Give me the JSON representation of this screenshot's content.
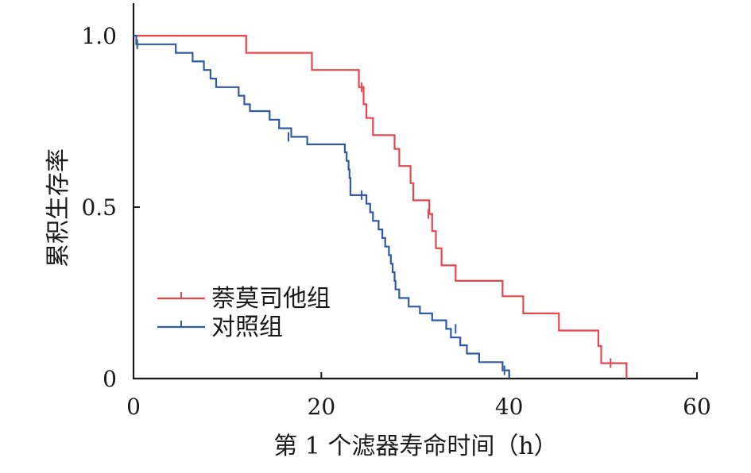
{
  "chart_data": {
    "type": "line",
    "subtype": "kaplan-meier-step",
    "title": "",
    "xlabel": "第 1 个滤器寿命时间（h）",
    "ylabel": "累积生存率",
    "xlim": [
      0,
      60
    ],
    "ylim": [
      0,
      1.0
    ],
    "xticks": [
      "0",
      "20",
      "40",
      "60"
    ],
    "yticks": [
      "0",
      "0.5",
      "1.0"
    ],
    "grid": false,
    "legend_position": "left-middle",
    "series": [
      {
        "name": "萘莫司他组",
        "color": "#e8454d",
        "steps": [
          [
            0,
            1.0
          ],
          [
            12,
            1.0
          ],
          [
            12,
            0.95
          ],
          [
            19,
            0.95
          ],
          [
            19,
            0.9
          ],
          [
            24,
            0.9
          ],
          [
            24,
            0.85
          ],
          [
            24.5,
            0.8
          ],
          [
            24.8,
            0.76
          ],
          [
            25.5,
            0.71
          ],
          [
            27.5,
            0.71
          ],
          [
            27.8,
            0.67
          ],
          [
            28.3,
            0.62
          ],
          [
            29.3,
            0.62
          ],
          [
            29.5,
            0.57
          ],
          [
            29.8,
            0.52
          ],
          [
            31.3,
            0.52
          ],
          [
            31.5,
            0.48
          ],
          [
            31.8,
            0.43
          ],
          [
            32.2,
            0.38
          ],
          [
            32.8,
            0.33
          ],
          [
            34.3,
            0.33
          ],
          [
            34.3,
            0.285
          ],
          [
            39.3,
            0.285
          ],
          [
            39.3,
            0.24
          ],
          [
            41.5,
            0.24
          ],
          [
            41.5,
            0.19
          ],
          [
            45.3,
            0.19
          ],
          [
            45.3,
            0.14
          ],
          [
            49.3,
            0.14
          ],
          [
            49.5,
            0.095
          ],
          [
            49.8,
            0.045
          ],
          [
            52.5,
            0.045
          ],
          [
            52.5,
            0.0
          ]
        ],
        "censored": [
          [
            24.3,
            0.85
          ],
          [
            31.4,
            0.48
          ],
          [
            50.8,
            0.045
          ]
        ]
      },
      {
        "name": "对照组",
        "color": "#2f5aa5",
        "steps": [
          [
            0,
            1.0
          ],
          [
            0.3,
            0.975
          ],
          [
            4.5,
            0.975
          ],
          [
            4.5,
            0.95
          ],
          [
            6.3,
            0.95
          ],
          [
            6.3,
            0.925
          ],
          [
            7.5,
            0.925
          ],
          [
            7.5,
            0.9
          ],
          [
            8.2,
            0.9
          ],
          [
            8.2,
            0.875
          ],
          [
            8.8,
            0.875
          ],
          [
            8.8,
            0.85
          ],
          [
            11.2,
            0.85
          ],
          [
            11.2,
            0.825
          ],
          [
            11.8,
            0.825
          ],
          [
            11.8,
            0.8
          ],
          [
            12.4,
            0.8
          ],
          [
            12.4,
            0.78
          ],
          [
            14.5,
            0.78
          ],
          [
            14.5,
            0.755
          ],
          [
            15.5,
            0.755
          ],
          [
            15.5,
            0.73
          ],
          [
            16.8,
            0.73
          ],
          [
            16.8,
            0.705
          ],
          [
            18.5,
            0.705
          ],
          [
            18.5,
            0.683
          ],
          [
            22.5,
            0.683
          ],
          [
            22.5,
            0.66
          ],
          [
            22.7,
            0.635
          ],
          [
            22.9,
            0.61
          ],
          [
            23.0,
            0.585
          ],
          [
            23.1,
            0.535
          ],
          [
            24.8,
            0.535
          ],
          [
            24.8,
            0.51
          ],
          [
            25.2,
            0.485
          ],
          [
            25.5,
            0.46
          ],
          [
            26.1,
            0.435
          ],
          [
            26.5,
            0.41
          ],
          [
            26.8,
            0.385
          ],
          [
            27.2,
            0.36
          ],
          [
            27.4,
            0.335
          ],
          [
            27.6,
            0.31
          ],
          [
            27.8,
            0.285
          ],
          [
            27.9,
            0.26
          ],
          [
            28.3,
            0.235
          ],
          [
            29.3,
            0.21
          ],
          [
            30.5,
            0.19
          ],
          [
            31.8,
            0.17
          ],
          [
            33.3,
            0.17
          ],
          [
            33.3,
            0.145
          ],
          [
            33.8,
            0.145
          ],
          [
            33.8,
            0.12
          ],
          [
            34.8,
            0.12
          ],
          [
            34.8,
            0.097
          ],
          [
            35.5,
            0.097
          ],
          [
            35.5,
            0.073
          ],
          [
            36.8,
            0.073
          ],
          [
            36.8,
            0.048
          ],
          [
            39.3,
            0.048
          ],
          [
            39.3,
            0.024
          ],
          [
            40.0,
            0.024
          ],
          [
            40.0,
            0.0
          ]
        ],
        "censored": [
          [
            0.4,
            0.975
          ],
          [
            16.5,
            0.705
          ],
          [
            24.3,
            0.535
          ],
          [
            34.3,
            0.145
          ],
          [
            39.5,
            0.024
          ]
        ]
      }
    ]
  }
}
